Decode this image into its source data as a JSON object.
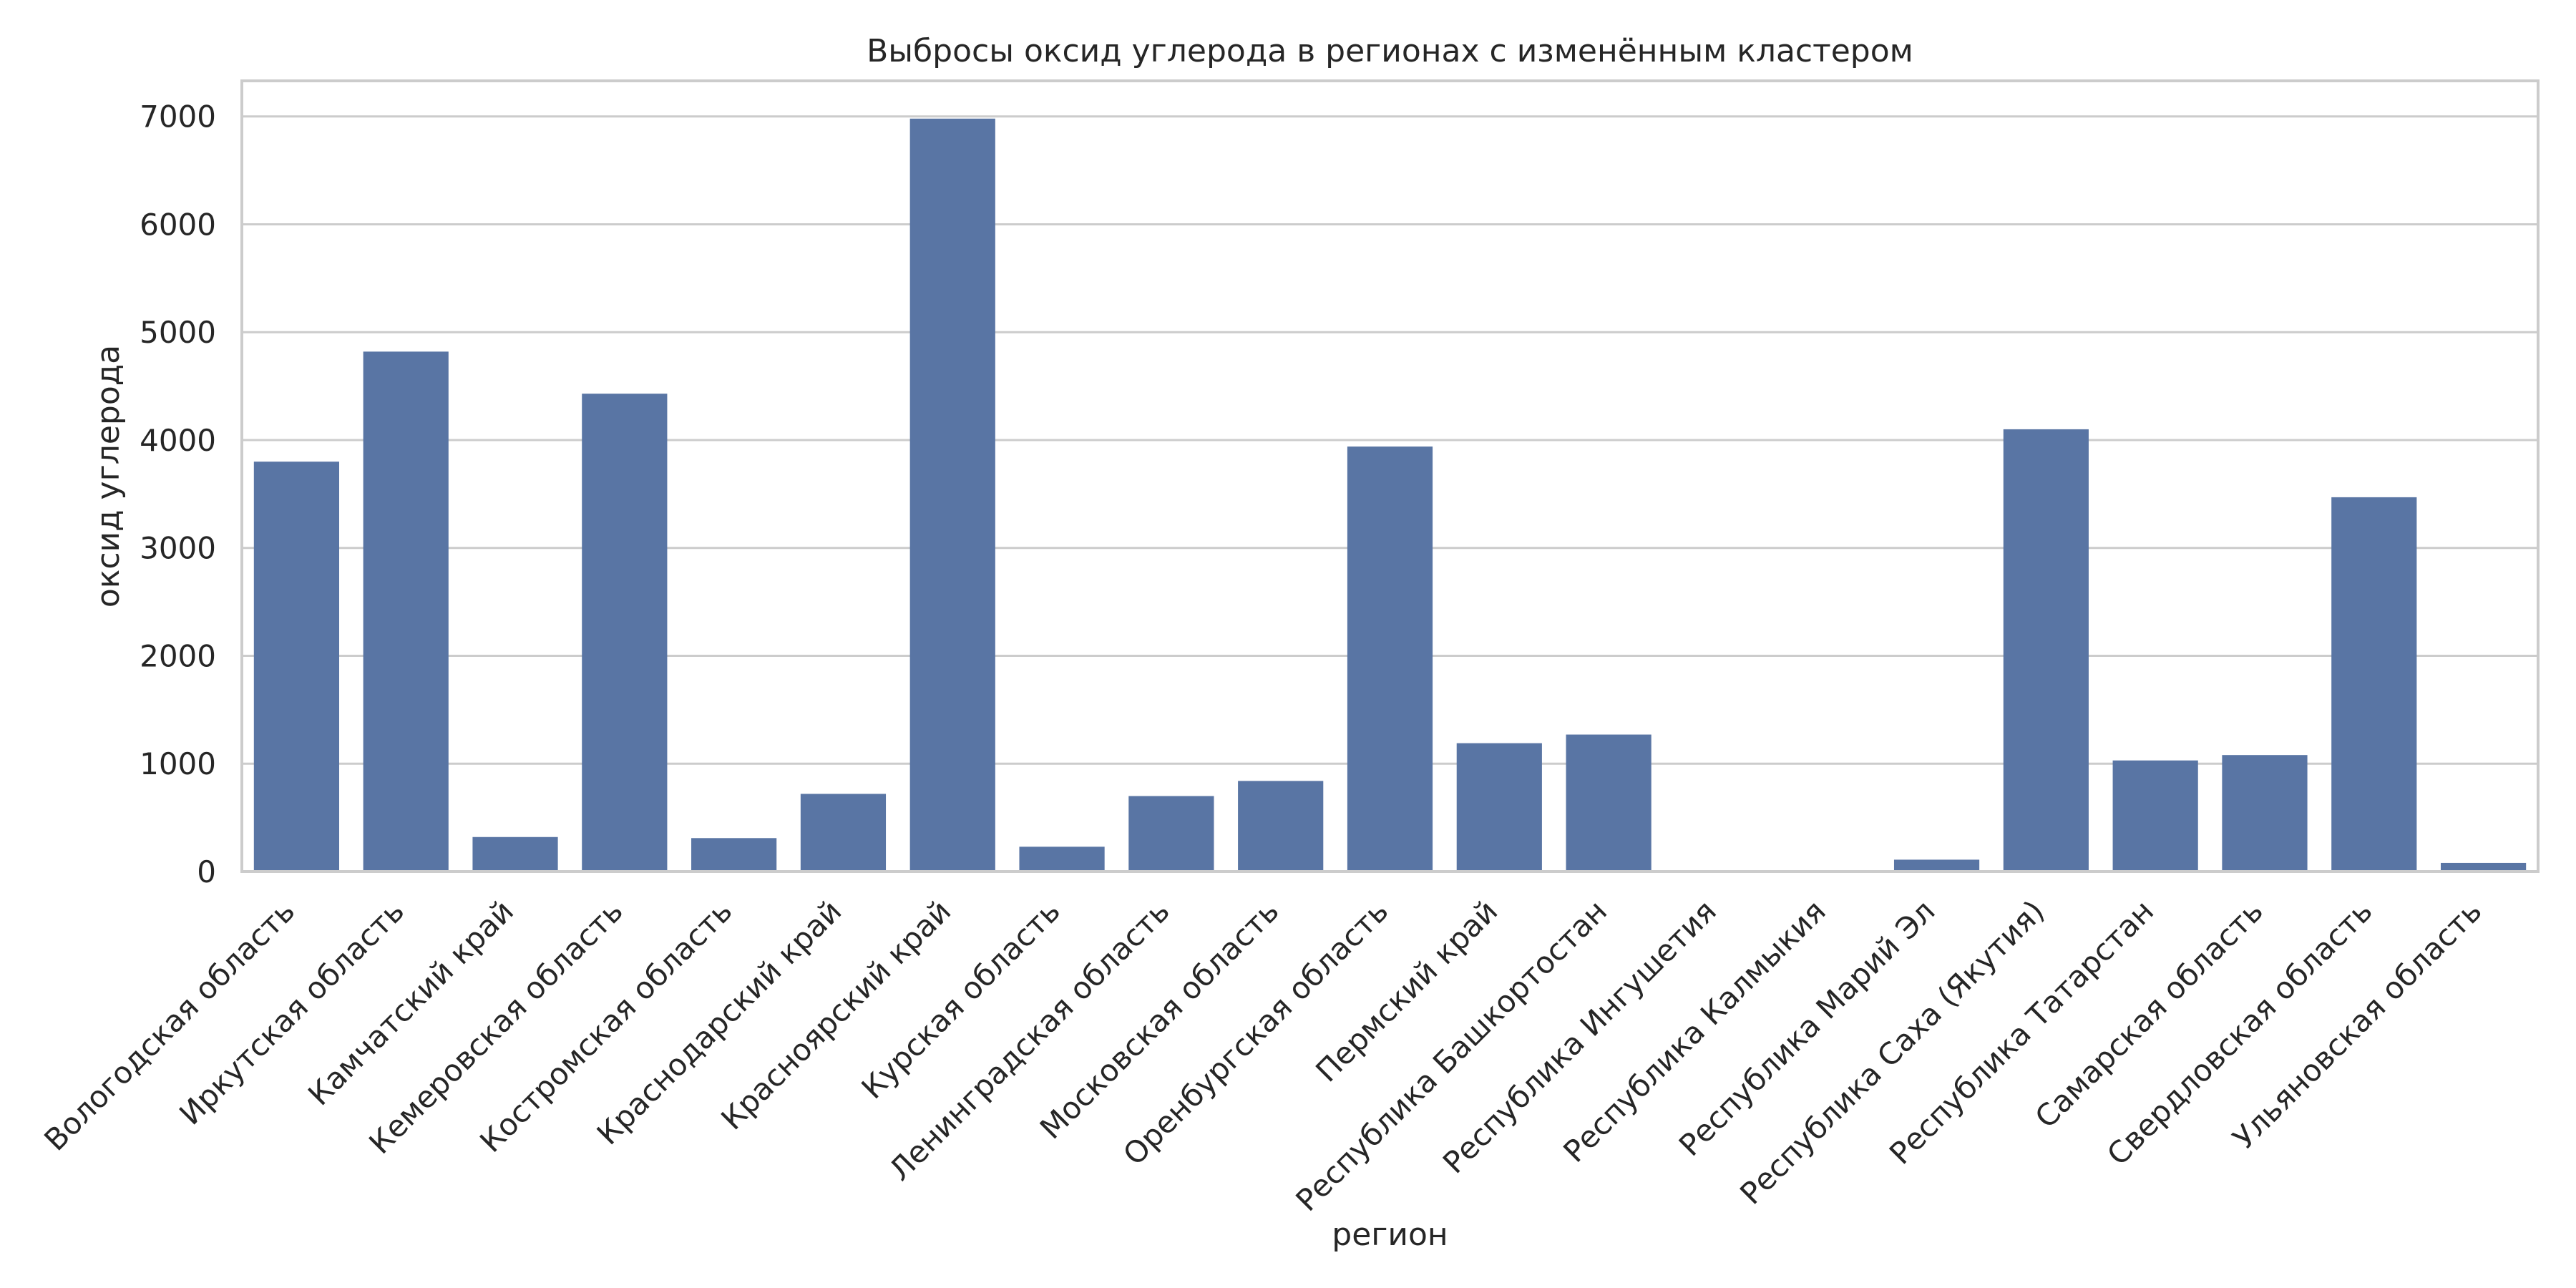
{
  "chart_data": {
    "type": "bar",
    "title": "Выбросы оксид углерода в регионах с изменённым кластером",
    "xlabel": "регион",
    "ylabel": "оксид углерода",
    "ylim": [
      0,
      7330
    ],
    "yticks": [
      0,
      1000,
      2000,
      3000,
      4000,
      5000,
      6000,
      7000
    ],
    "grid": true,
    "bar_color": "#5975a4",
    "categories": [
      "Вологодская область",
      "Иркутская область",
      "Камчатский край",
      "Кемеровская область",
      "Костромская область",
      "Краснодарский край",
      "Красноярский край",
      "Курская область",
      "Ленинградская область",
      "Московская область",
      "Оренбургская область",
      "Пермский край",
      "Республика Башкортостан",
      "Республика Ингушетия",
      "Республика Калмыкия",
      "Республика Марий Эл",
      "Республика Саха (Якутия)",
      "Республика Татарстан",
      "Самарская область",
      "Свердловская область",
      "Ульяновская область"
    ],
    "values": [
      3800,
      4820,
      320,
      4430,
      310,
      720,
      6980,
      230,
      700,
      840,
      3940,
      1190,
      1270,
      5,
      5,
      110,
      4100,
      1030,
      1080,
      3470,
      80
    ]
  }
}
